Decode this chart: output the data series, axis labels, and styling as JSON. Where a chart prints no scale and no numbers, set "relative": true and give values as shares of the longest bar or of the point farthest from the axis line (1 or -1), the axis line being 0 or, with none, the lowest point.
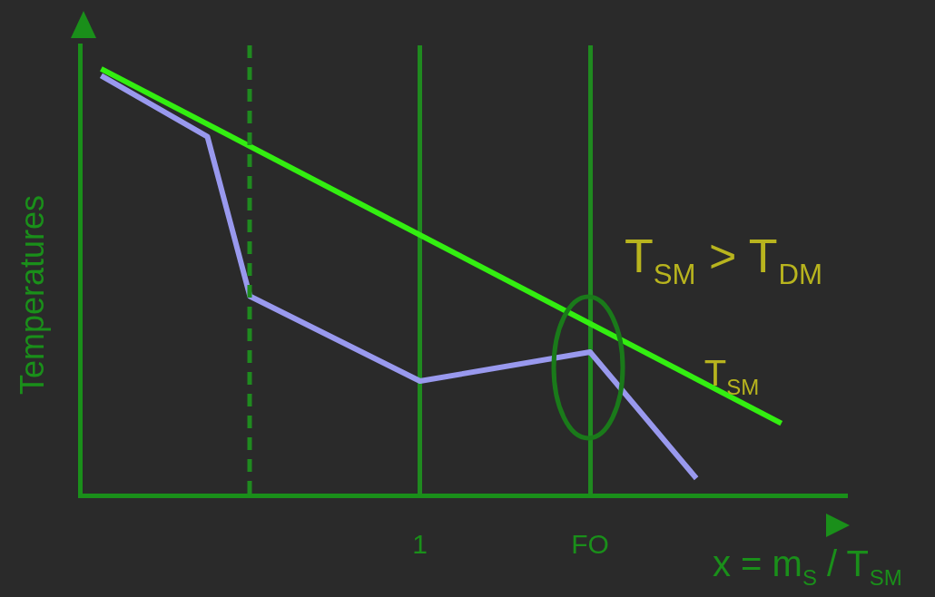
{
  "chart_data": {
    "type": "line",
    "relative": true,
    "xlabel": "x = m$_{S}$ / T$_{SM}$",
    "ylabel": "Temperatures",
    "categories": [
      null,
      null,
      null,
      null,
      null,
      null,
      null,
      null,
      null,
      null,
      null,
      null,
      null,
      null,
      null,
      null,
      "1",
      null,
      null,
      null,
      null,
      null,
      null,
      null,
      "FO",
      null,
      null,
      null,
      null,
      null,
      null,
      null,
      null,
      null,
      null,
      null,
      null
    ],
    "grid": "x",
    "legend": false,
    "marker": "none",
    "line_style": "solid",
    "annotations": [
      "T$_{SM}$ > T$_{DM}$"
    ],
    "series": [
      {
        "name": "T$_{SM}$",
        "color": "#33ee11",
        "values": [
          null,
          1.0,
          null,
          null,
          null,
          null,
          null,
          null,
          null,
          null,
          null,
          null,
          null,
          null,
          null,
          null,
          null,
          null,
          null,
          null,
          null,
          null,
          null,
          null,
          null,
          null,
          null,
          null,
          null,
          null,
          null,
          null,
          null,
          0.169,
          null,
          null,
          null
        ]
      },
      {
        "color": "#9999ee",
        "values": [
          null,
          0.984,
          null,
          null,
          null,
          null,
          0.841,
          null,
          0.467,
          null,
          null,
          null,
          null,
          null,
          null,
          null,
          0.268,
          null,
          null,
          null,
          null,
          null,
          null,
          null,
          0.336,
          null,
          null,
          null,
          null,
          0.04,
          null,
          null,
          null,
          null,
          null,
          null,
          null
        ]
      }
    ]
  }
}
